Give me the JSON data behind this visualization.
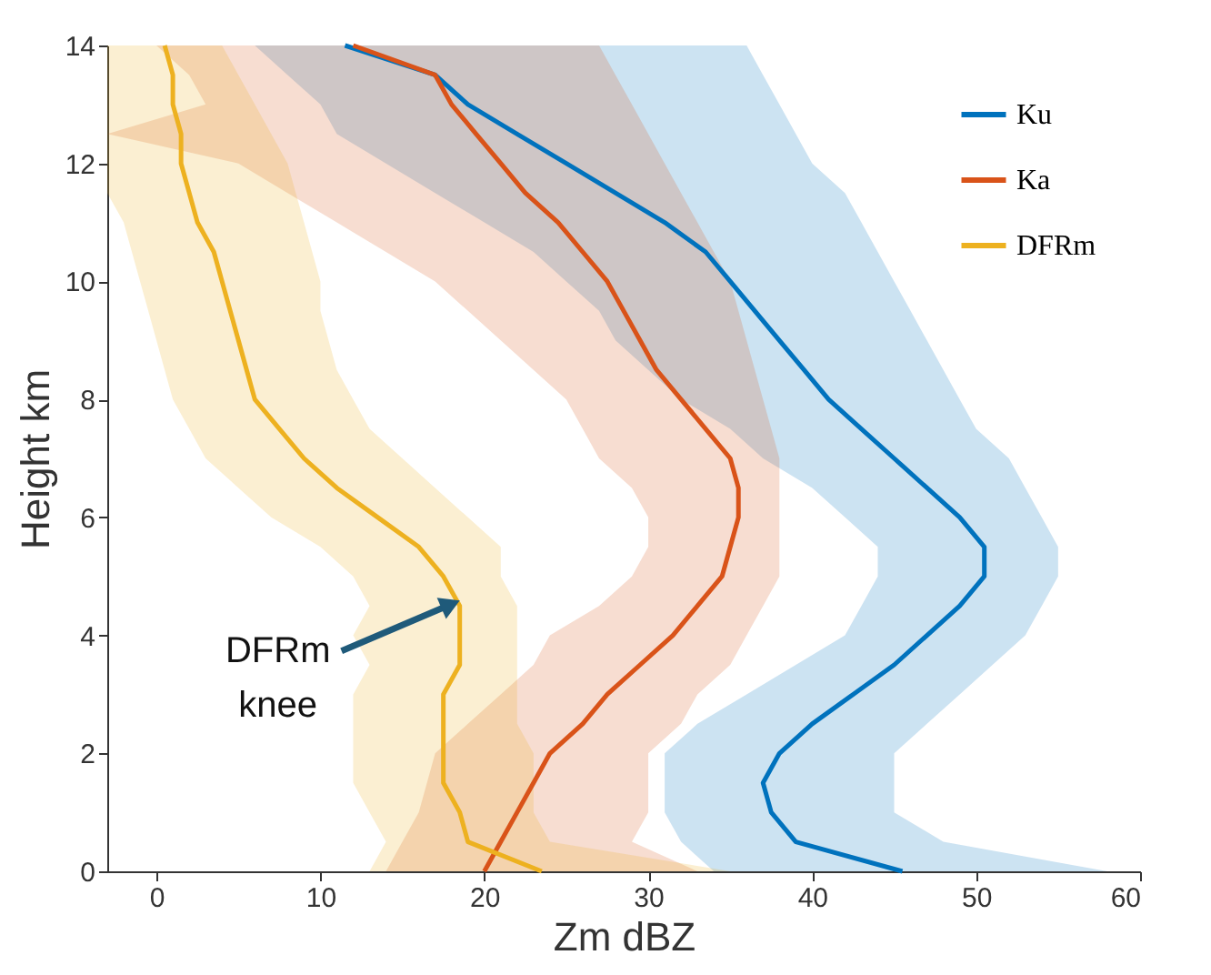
{
  "chart_data": {
    "type": "line",
    "orientation": "horizontal",
    "xlabel": "Zm dBZ",
    "ylabel": "Height km",
    "x": [
      0,
      0.5,
      1,
      1.5,
      2,
      2.5,
      3,
      3.5,
      4,
      4.5,
      5,
      5.5,
      6,
      6.5,
      7,
      7.5,
      8,
      8.5,
      9,
      9.5,
      10,
      10.5,
      11,
      11.5,
      12,
      12.5,
      13,
      13.5,
      14
    ],
    "series": [
      {
        "name": "Ku",
        "color": "#0072bd",
        "values": [
          45.5,
          39,
          37.5,
          37,
          38,
          40,
          42.5,
          45,
          47,
          49,
          50.5,
          50.5,
          49,
          47,
          45,
          43,
          41,
          39.5,
          38,
          36.5,
          35,
          33.5,
          31,
          28,
          25,
          22,
          19,
          17,
          11.5
        ],
        "lower": [
          34,
          32,
          31,
          31,
          31,
          33,
          36,
          39,
          42,
          43,
          44,
          44,
          42,
          40,
          37,
          35,
          32,
          30,
          28,
          27,
          25,
          23,
          20,
          17,
          14,
          11,
          10,
          8,
          6
        ],
        "upper": [
          58,
          48,
          45,
          45,
          45,
          47,
          49,
          51,
          53,
          54,
          55,
          55,
          54,
          53,
          52,
          50,
          49,
          48,
          47,
          46,
          45,
          44,
          43,
          42,
          40,
          39,
          38,
          37,
          36
        ]
      },
      {
        "name": "Ka",
        "color": "#d95319",
        "values": [
          20,
          21,
          22,
          23,
          24,
          26,
          27.5,
          29.5,
          31.5,
          33,
          34.5,
          35,
          35.5,
          35.5,
          35,
          33.5,
          32,
          30.5,
          29.5,
          28.5,
          27.5,
          26,
          24.5,
          22.5,
          21,
          19.5,
          18,
          17,
          12
        ],
        "lower": [
          14,
          15,
          16,
          16.5,
          17,
          19,
          21,
          23,
          24,
          27,
          29,
          30,
          30,
          29,
          27,
          26,
          25,
          23,
          21,
          19,
          17,
          14,
          11,
          8,
          5,
          -3,
          3,
          2,
          0
        ],
        "upper": [
          33,
          29,
          30,
          30,
          30,
          32,
          33,
          35,
          36,
          37,
          38,
          38,
          38,
          38,
          38,
          37.5,
          37,
          36.5,
          36,
          35.5,
          35,
          34,
          33,
          32,
          31,
          30,
          29,
          28,
          27
        ]
      },
      {
        "name": "DFRm",
        "color": "#edb120",
        "values": [
          23.5,
          19,
          18.5,
          17.5,
          17.5,
          17.5,
          17.5,
          18.5,
          18.5,
          18.5,
          17.5,
          16,
          13.5,
          11,
          9,
          7.5,
          6,
          5.5,
          5,
          4.5,
          4,
          3.5,
          2.5,
          2,
          1.5,
          1.5,
          1,
          1,
          0.5
        ],
        "lower": [
          13,
          14,
          13,
          12,
          12,
          12,
          12,
          13,
          12,
          13,
          12,
          10,
          7,
          5,
          3,
          2,
          1,
          0.5,
          0,
          -0.5,
          -1,
          -1.5,
          -2,
          -3,
          -3,
          -3,
          -3,
          -3,
          -3
        ],
        "upper": [
          35,
          24,
          23,
          23,
          23,
          22,
          22,
          22,
          22,
          22,
          21,
          21,
          19,
          17,
          15,
          13,
          12,
          11,
          10.5,
          10,
          10,
          9.5,
          9,
          8.5,
          8,
          7,
          6,
          5,
          4
        ]
      }
    ],
    "xlim": [
      -3,
      60
    ],
    "xticks": [
      0,
      10,
      20,
      30,
      40,
      50,
      60
    ],
    "ylim": [
      0,
      14
    ],
    "yticks": [
      0,
      2,
      4,
      6,
      8,
      10,
      12,
      14
    ],
    "legend": "top right",
    "grid": false,
    "annotations": [
      {
        "text": "DFRm knee",
        "x": 18.5,
        "y": 4.6
      }
    ]
  }
}
